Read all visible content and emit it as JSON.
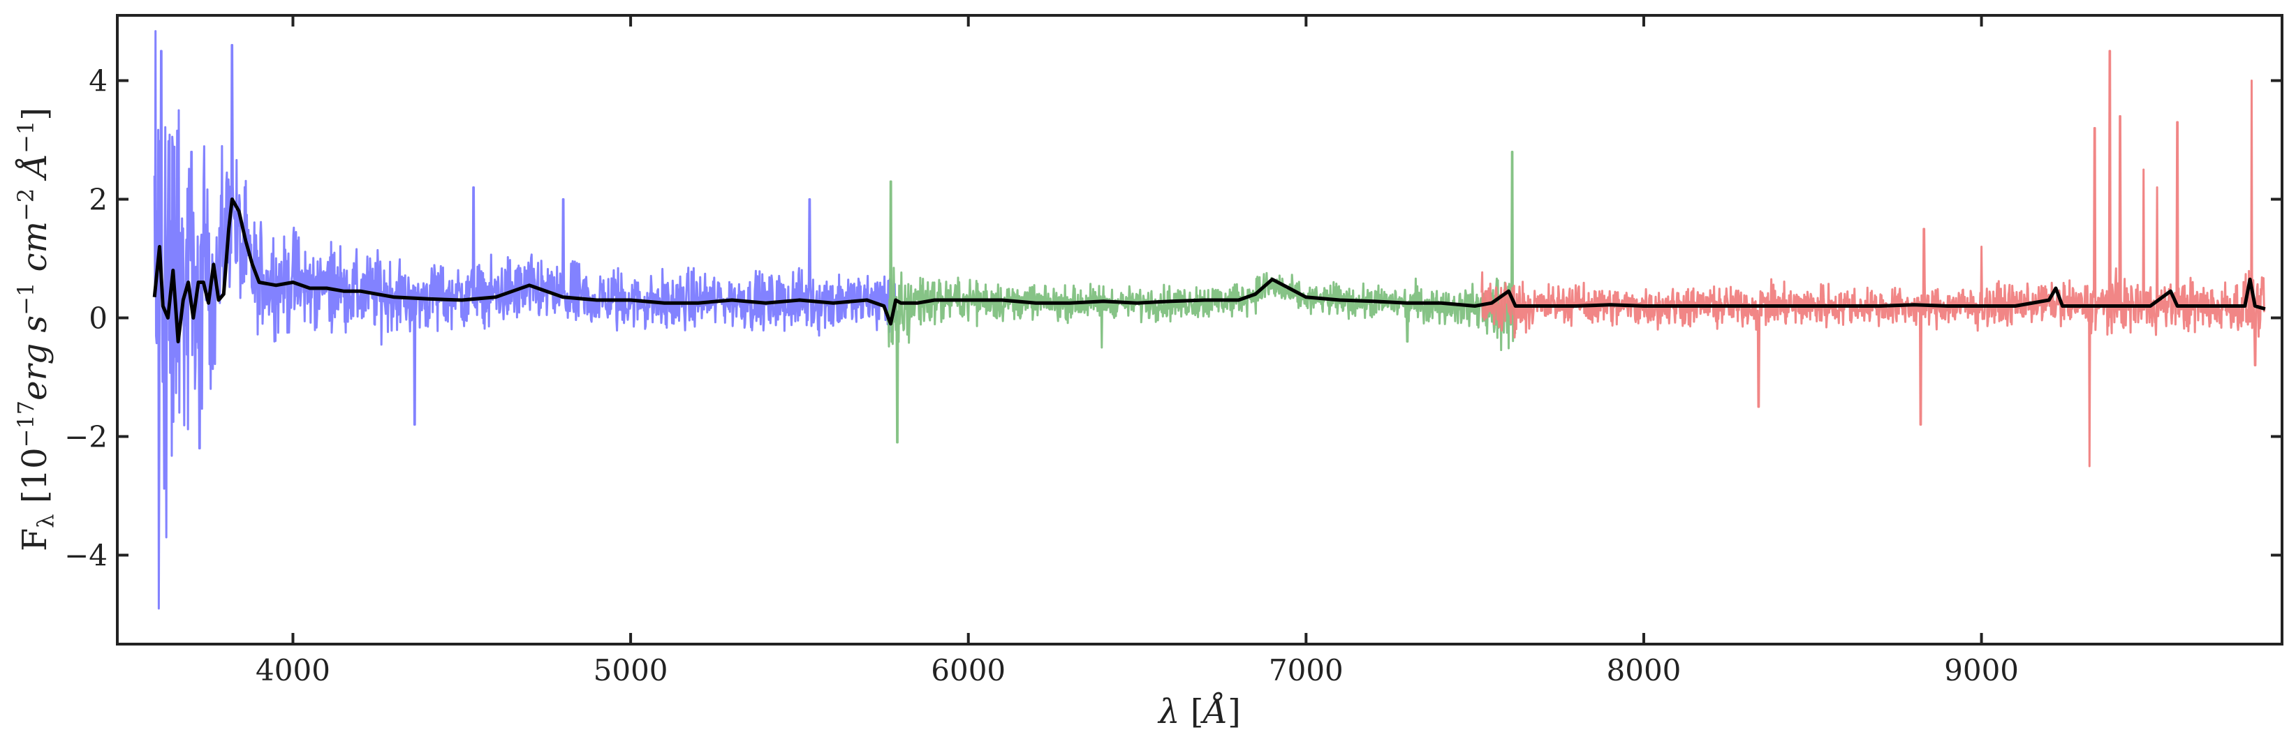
{
  "chart_data": {
    "type": "line",
    "xlabel": "λ [Å]",
    "ylabel": "F_λ [10^−17 erg s^−1 cm^−2 Å^−1]",
    "xlim": [
      3480,
      9890
    ],
    "ylim": [
      -5.5,
      5.1
    ],
    "xticks": [
      4000,
      5000,
      6000,
      7000,
      8000,
      9000
    ],
    "yticks": [
      -4,
      -2,
      0,
      2,
      4
    ],
    "grid": false,
    "legend": "none",
    "series": [
      {
        "color": "#7b7bff",
        "noisy": true,
        "x": [
          3590,
          3600,
          3610,
          3620,
          3640,
          3660,
          3680,
          3700,
          3720,
          3740,
          3760,
          3780,
          3800,
          3820,
          3840,
          3860,
          3880,
          3900,
          3950,
          4000,
          4050,
          4100,
          4200,
          4300,
          4340,
          4360,
          4400,
          4500,
          4600,
          4700,
          4800,
          4900,
          5000,
          5100,
          5200,
          5300,
          5400,
          5500,
          5600,
          5700,
          5750,
          5790
        ],
        "y": [
          0.3,
          0.5,
          0.4,
          0.8,
          0.3,
          0.9,
          0.2,
          0.5,
          0.4,
          0.9,
          0.6,
          0.8,
          1.5,
          1.8,
          1.3,
          1.0,
          0.8,
          0.7,
          0.6,
          0.65,
          0.5,
          0.55,
          0.45,
          0.4,
          0.35,
          0.3,
          0.4,
          0.35,
          0.4,
          0.5,
          0.35,
          0.3,
          0.3,
          0.25,
          0.3,
          0.3,
          0.25,
          0.3,
          0.25,
          0.3,
          0.3,
          0.3
        ],
        "amp": [
          4.4,
          4.8,
          4.0,
          4.2,
          3.8,
          3.2,
          2.8,
          2.4,
          2.2,
          2.0,
          1.8,
          1.6,
          1.4,
          1.4,
          1.2,
          1.1,
          1.0,
          0.95,
          0.9,
          0.85,
          0.8,
          0.75,
          0.7,
          0.65,
          0.65,
          0.6,
          0.65,
          0.6,
          0.6,
          0.55,
          0.55,
          0.55,
          0.55,
          0.5,
          0.5,
          0.5,
          0.5,
          0.5,
          0.5,
          0.55,
          0.55,
          0.55
        ],
        "spikes": [
          [
            3603,
            -4.9
          ],
          [
            3610,
            4.5
          ],
          [
            3625,
            -3.7
          ],
          [
            3662,
            3.5
          ],
          [
            3700,
            2.8
          ],
          [
            3724,
            -2.2
          ],
          [
            3820,
            4.6
          ],
          [
            4360,
            -1.8
          ],
          [
            4535,
            2.2
          ],
          [
            4800,
            2.0
          ],
          [
            5530,
            2.0
          ]
        ]
      },
      {
        "color": "#7fc07f",
        "noisy": true,
        "x": [
          5760,
          5780,
          5800,
          5850,
          5900,
          6000,
          6200,
          6400,
          6600,
          6800,
          6900,
          6950,
          7000,
          7100,
          7200,
          7300,
          7400,
          7500,
          7560,
          7600,
          7620
        ],
        "y": [
          0.1,
          -0.2,
          0.1,
          0.3,
          0.3,
          0.3,
          0.25,
          0.25,
          0.25,
          0.3,
          0.55,
          0.4,
          0.3,
          0.3,
          0.25,
          0.25,
          0.2,
          0.2,
          0.1,
          0.1,
          0.1
        ],
        "amp": [
          0.7,
          1.2,
          0.8,
          0.5,
          0.4,
          0.35,
          0.3,
          0.28,
          0.28,
          0.28,
          0.3,
          0.3,
          0.28,
          0.28,
          0.3,
          0.3,
          0.32,
          0.35,
          0.55,
          0.8,
          0.6
        ],
        "spikes": [
          [
            5770,
            2.3
          ],
          [
            5790,
            -2.1
          ],
          [
            6395,
            -0.5
          ],
          [
            7300,
            -0.4
          ],
          [
            7610,
            2.8
          ],
          [
            7630,
            -1.3
          ]
        ]
      },
      {
        "color": "#f07f7f",
        "noisy": true,
        "x": [
          7520,
          7560,
          7600,
          7650,
          7700,
          7800,
          7900,
          8000,
          8200,
          8400,
          8600,
          8800,
          9000,
          9200,
          9300,
          9400,
          9500,
          9600,
          9700,
          9800,
          9840
        ],
        "y": [
          0.2,
          0.2,
          0.2,
          0.2,
          0.2,
          0.25,
          0.2,
          0.2,
          0.2,
          0.2,
          0.2,
          0.2,
          0.2,
          0.25,
          0.2,
          0.2,
          0.2,
          0.2,
          0.2,
          0.2,
          0.2
        ],
        "amp": [
          0.55,
          0.55,
          0.55,
          0.4,
          0.35,
          0.35,
          0.35,
          0.35,
          0.35,
          0.35,
          0.35,
          0.35,
          0.35,
          0.35,
          0.4,
          0.45,
          0.45,
          0.45,
          0.45,
          0.5,
          0.5
        ],
        "spikes": [
          [
            8340,
            -1.5
          ],
          [
            8820,
            -1.8
          ],
          [
            8830,
            1.5
          ],
          [
            9000,
            1.2
          ],
          [
            9320,
            -2.5
          ],
          [
            9335,
            3.2
          ],
          [
            9380,
            4.5
          ],
          [
            9410,
            3.4
          ],
          [
            9480,
            2.5
          ],
          [
            9520,
            2.2
          ],
          [
            9580,
            3.3
          ],
          [
            9800,
            4.0
          ],
          [
            9810,
            -0.8
          ]
        ]
      },
      {
        "color": "#000000",
        "noisy": false,
        "x": [
          3590,
          3605,
          3615,
          3630,
          3645,
          3660,
          3675,
          3690,
          3705,
          3720,
          3735,
          3750,
          3765,
          3780,
          3795,
          3810,
          3820,
          3840,
          3860,
          3880,
          3900,
          3950,
          4000,
          4050,
          4100,
          4150,
          4200,
          4300,
          4400,
          4500,
          4600,
          4700,
          4800,
          4900,
          5000,
          5100,
          5200,
          5300,
          5400,
          5500,
          5600,
          5700,
          5750,
          5770,
          5785,
          5800,
          5850,
          5900,
          6000,
          6100,
          6200,
          6300,
          6400,
          6500,
          6600,
          6700,
          6800,
          6850,
          6900,
          6950,
          7000,
          7100,
          7200,
          7300,
          7400,
          7500,
          7550,
          7600,
          7620,
          7650,
          7700,
          7800,
          7900,
          8000,
          8100,
          8200,
          8300,
          8400,
          8500,
          8600,
          8700,
          8800,
          8900,
          9000,
          9100,
          9200,
          9220,
          9240,
          9300,
          9400,
          9500,
          9560,
          9580,
          9600,
          9700,
          9780,
          9795,
          9810,
          9840
        ],
        "y": [
          0.35,
          1.2,
          0.2,
          0.0,
          0.8,
          -0.4,
          0.3,
          0.6,
          0.0,
          0.6,
          0.6,
          0.25,
          0.9,
          0.3,
          0.4,
          1.5,
          2.0,
          1.8,
          1.3,
          0.9,
          0.6,
          0.55,
          0.6,
          0.5,
          0.5,
          0.45,
          0.45,
          0.35,
          0.32,
          0.3,
          0.35,
          0.55,
          0.35,
          0.3,
          0.3,
          0.25,
          0.25,
          0.3,
          0.25,
          0.3,
          0.25,
          0.3,
          0.2,
          -0.1,
          0.3,
          0.25,
          0.25,
          0.3,
          0.3,
          0.3,
          0.25,
          0.25,
          0.28,
          0.25,
          0.28,
          0.3,
          0.3,
          0.4,
          0.65,
          0.5,
          0.35,
          0.3,
          0.28,
          0.25,
          0.25,
          0.2,
          0.25,
          0.45,
          0.2,
          0.2,
          0.2,
          0.2,
          0.22,
          0.2,
          0.2,
          0.2,
          0.2,
          0.2,
          0.2,
          0.2,
          0.2,
          0.22,
          0.2,
          0.2,
          0.2,
          0.3,
          0.5,
          0.2,
          0.2,
          0.2,
          0.2,
          0.45,
          0.2,
          0.2,
          0.2,
          0.2,
          0.65,
          0.2,
          0.15
        ]
      }
    ]
  }
}
